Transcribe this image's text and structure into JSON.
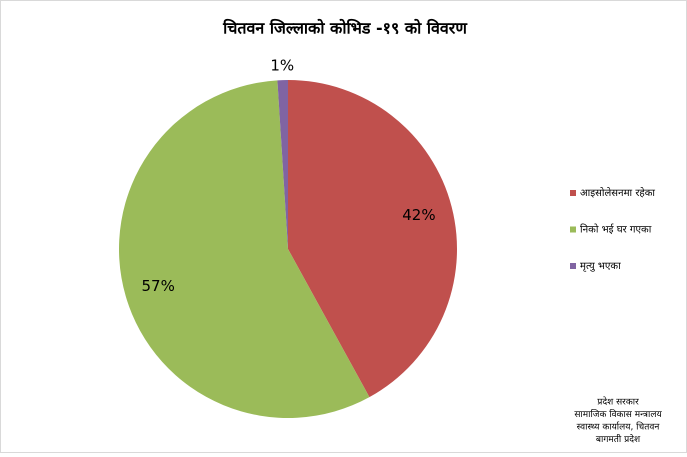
{
  "chart_data": {
    "type": "pie",
    "title": "चितवन जिल्लाको कोभिड -१९ को विवरण",
    "categories": [
      "आइसोलेसनमा रहेका",
      "निको भई घर गएका",
      "मृत्यु भएका"
    ],
    "values": [
      42,
      57,
      1
    ],
    "value_labels": [
      "42%",
      "57%",
      "1%"
    ],
    "colors": [
      "#c0504d",
      "#9bbb59",
      "#8064a2"
    ],
    "legend": "right",
    "notes": [
      "प्रदेश सरकार",
      "सामाजिक विकास मन्त्रालय",
      "स्वास्थ्य कार्यालय, चितवन",
      "बागमती प्रदेश"
    ]
  }
}
